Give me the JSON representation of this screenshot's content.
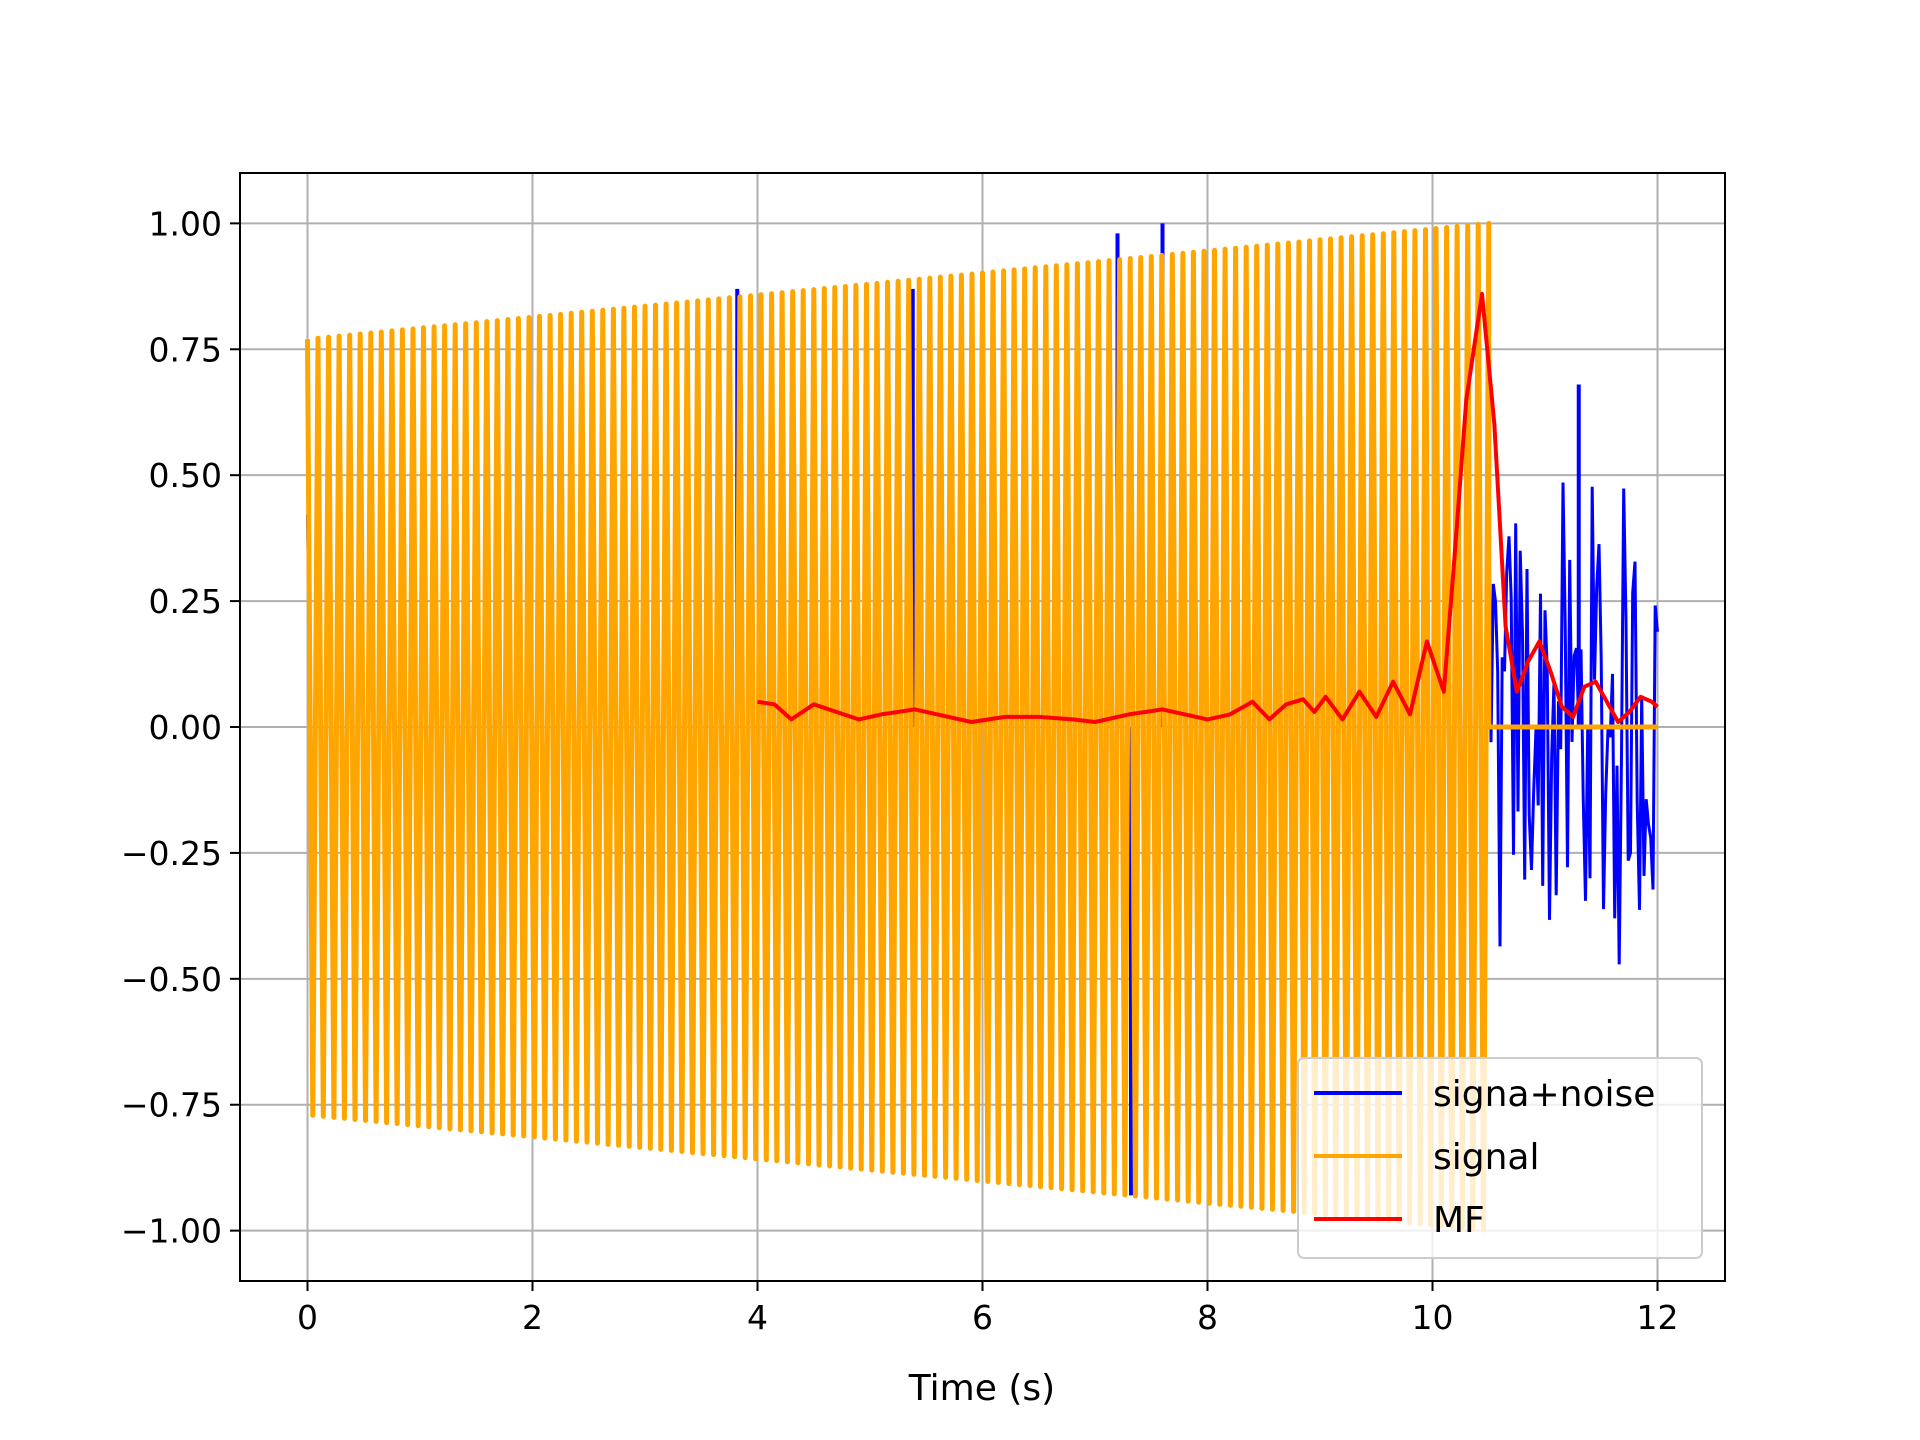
{
  "chart_data": {
    "type": "line",
    "title": "",
    "xlabel": "Time (s)",
    "ylabel": "",
    "xlim": [
      -0.6,
      12.6
    ],
    "ylim": [
      -1.1,
      1.1
    ],
    "grid": true,
    "legend_position": "lower-right",
    "x_ticks": [
      0,
      2,
      4,
      6,
      8,
      10,
      12
    ],
    "x_tick_labels": [
      "0",
      "2",
      "4",
      "6",
      "8",
      "10",
      "12"
    ],
    "y_ticks": [
      1.0,
      0.75,
      0.5,
      0.25,
      0.0,
      -0.25,
      -0.5,
      -0.75,
      -1.0
    ],
    "y_tick_labels": [
      "1.00",
      "0.75",
      "0.50",
      "0.25",
      "0.00",
      "−0.25",
      "−0.50",
      "−0.75",
      "−1.00"
    ],
    "series": [
      {
        "name": "signa+noise",
        "color": "#0000ff",
        "description_points": {
          "x_range": [
            0,
            12
          ],
          "spike_x": [
            3.82,
            5.38,
            7.2,
            7.32,
            7.6,
            11.3
          ],
          "spike_y": [
            0.87,
            0.87,
            0.98,
            -0.93,
            1.0,
            0.68
          ],
          "noise_tail_x_range": [
            10.5,
            12
          ],
          "noise_tail_amplitude": 0.55
        }
      },
      {
        "name": "signal",
        "color": "#ffa500",
        "chirp": {
          "x_start": 0,
          "x_end": 10.5,
          "amp_start": 0.77,
          "amp_end": 1.0,
          "cycles": 112,
          "after_value": 0.0,
          "after_x_end": 12
        }
      },
      {
        "name": "MF",
        "color": "#ff0000",
        "x": [
          4.0,
          4.15,
          4.3,
          4.5,
          4.7,
          4.9,
          5.1,
          5.4,
          5.6,
          5.9,
          6.2,
          6.5,
          6.8,
          7.0,
          7.3,
          7.6,
          7.8,
          8.0,
          8.2,
          8.4,
          8.55,
          8.7,
          8.85,
          8.95,
          9.05,
          9.2,
          9.35,
          9.5,
          9.65,
          9.8,
          9.95,
          10.1,
          10.2,
          10.3,
          10.44,
          10.55,
          10.65,
          10.75,
          10.85,
          10.95,
          11.05,
          11.15,
          11.25,
          11.35,
          11.45,
          11.55,
          11.65,
          11.75,
          11.85,
          11.95,
          12.0
        ],
        "y": [
          0.05,
          0.045,
          0.015,
          0.045,
          0.03,
          0.015,
          0.025,
          0.035,
          0.025,
          0.01,
          0.02,
          0.02,
          0.015,
          0.01,
          0.025,
          0.035,
          0.025,
          0.015,
          0.025,
          0.05,
          0.015,
          0.045,
          0.055,
          0.03,
          0.06,
          0.015,
          0.07,
          0.02,
          0.09,
          0.025,
          0.17,
          0.07,
          0.35,
          0.65,
          0.86,
          0.6,
          0.2,
          0.07,
          0.13,
          0.17,
          0.11,
          0.04,
          0.02,
          0.08,
          0.09,
          0.05,
          0.01,
          0.03,
          0.06,
          0.05,
          0.04
        ]
      }
    ],
    "legend": [
      "signa+noise",
      "signal",
      "MF"
    ]
  }
}
